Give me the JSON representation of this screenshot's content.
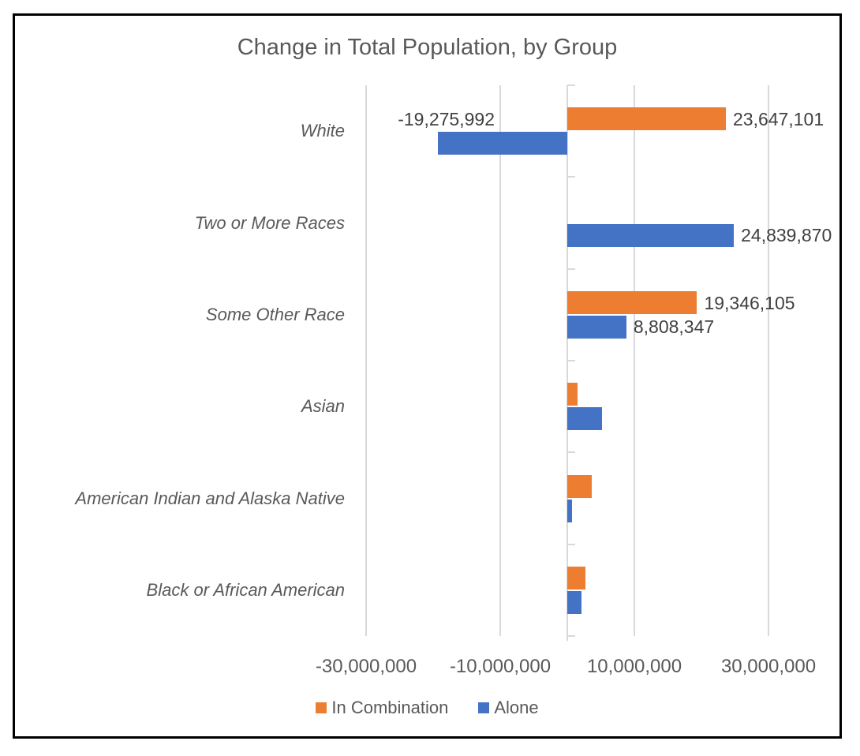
{
  "chart_data": {
    "type": "bar",
    "orientation": "horizontal",
    "title": "Change in Total Population, by Group",
    "categories": [
      "White",
      "Two or More Races",
      "Some Other Race",
      "Asian",
      "American Indian and Alaska Native",
      "Black or African American"
    ],
    "series": [
      {
        "name": "In Combination",
        "color": "#ED7D31",
        "values": [
          23647101,
          null,
          19346105,
          1500000,
          3600000,
          2700000
        ]
      },
      {
        "name": "Alone",
        "color": "#4472C4",
        "values": [
          -19275992,
          24839870,
          8808347,
          5200000,
          700000,
          2100000
        ]
      }
    ],
    "data_labels": [
      {
        "row": 0,
        "series": 0,
        "text": "23,647,101",
        "placement": "end"
      },
      {
        "row": 0,
        "series": 1,
        "text": "-19,275,992",
        "placement": "left-of-axis"
      },
      {
        "row": 1,
        "series": 1,
        "text": "24,839,870",
        "placement": "end"
      },
      {
        "row": 2,
        "series": 0,
        "text": "19,346,105",
        "placement": "end"
      },
      {
        "row": 2,
        "series": 1,
        "text": "8,808,347",
        "placement": "end"
      }
    ],
    "x_axis": {
      "ticks": [
        {
          "value": -30000000,
          "label": "-30,000,000"
        },
        {
          "value": -10000000,
          "label": "-10,000,000"
        },
        {
          "value": 10000000,
          "label": "10,000,000"
        },
        {
          "value": 30000000,
          "label": "30,000,000"
        }
      ],
      "range": [
        -30000000,
        35000000
      ],
      "gridlines": true
    },
    "legend": {
      "position": "bottom",
      "entries": [
        {
          "label": "In Combination",
          "color": "#ED7D31"
        },
        {
          "label": "Alone",
          "color": "#4472C4"
        }
      ]
    },
    "colors": {
      "grid": "#D9D9D9",
      "axis_text": "#595959",
      "title_text": "#595959",
      "data_label_text": "#404040",
      "border": "#000000"
    }
  }
}
